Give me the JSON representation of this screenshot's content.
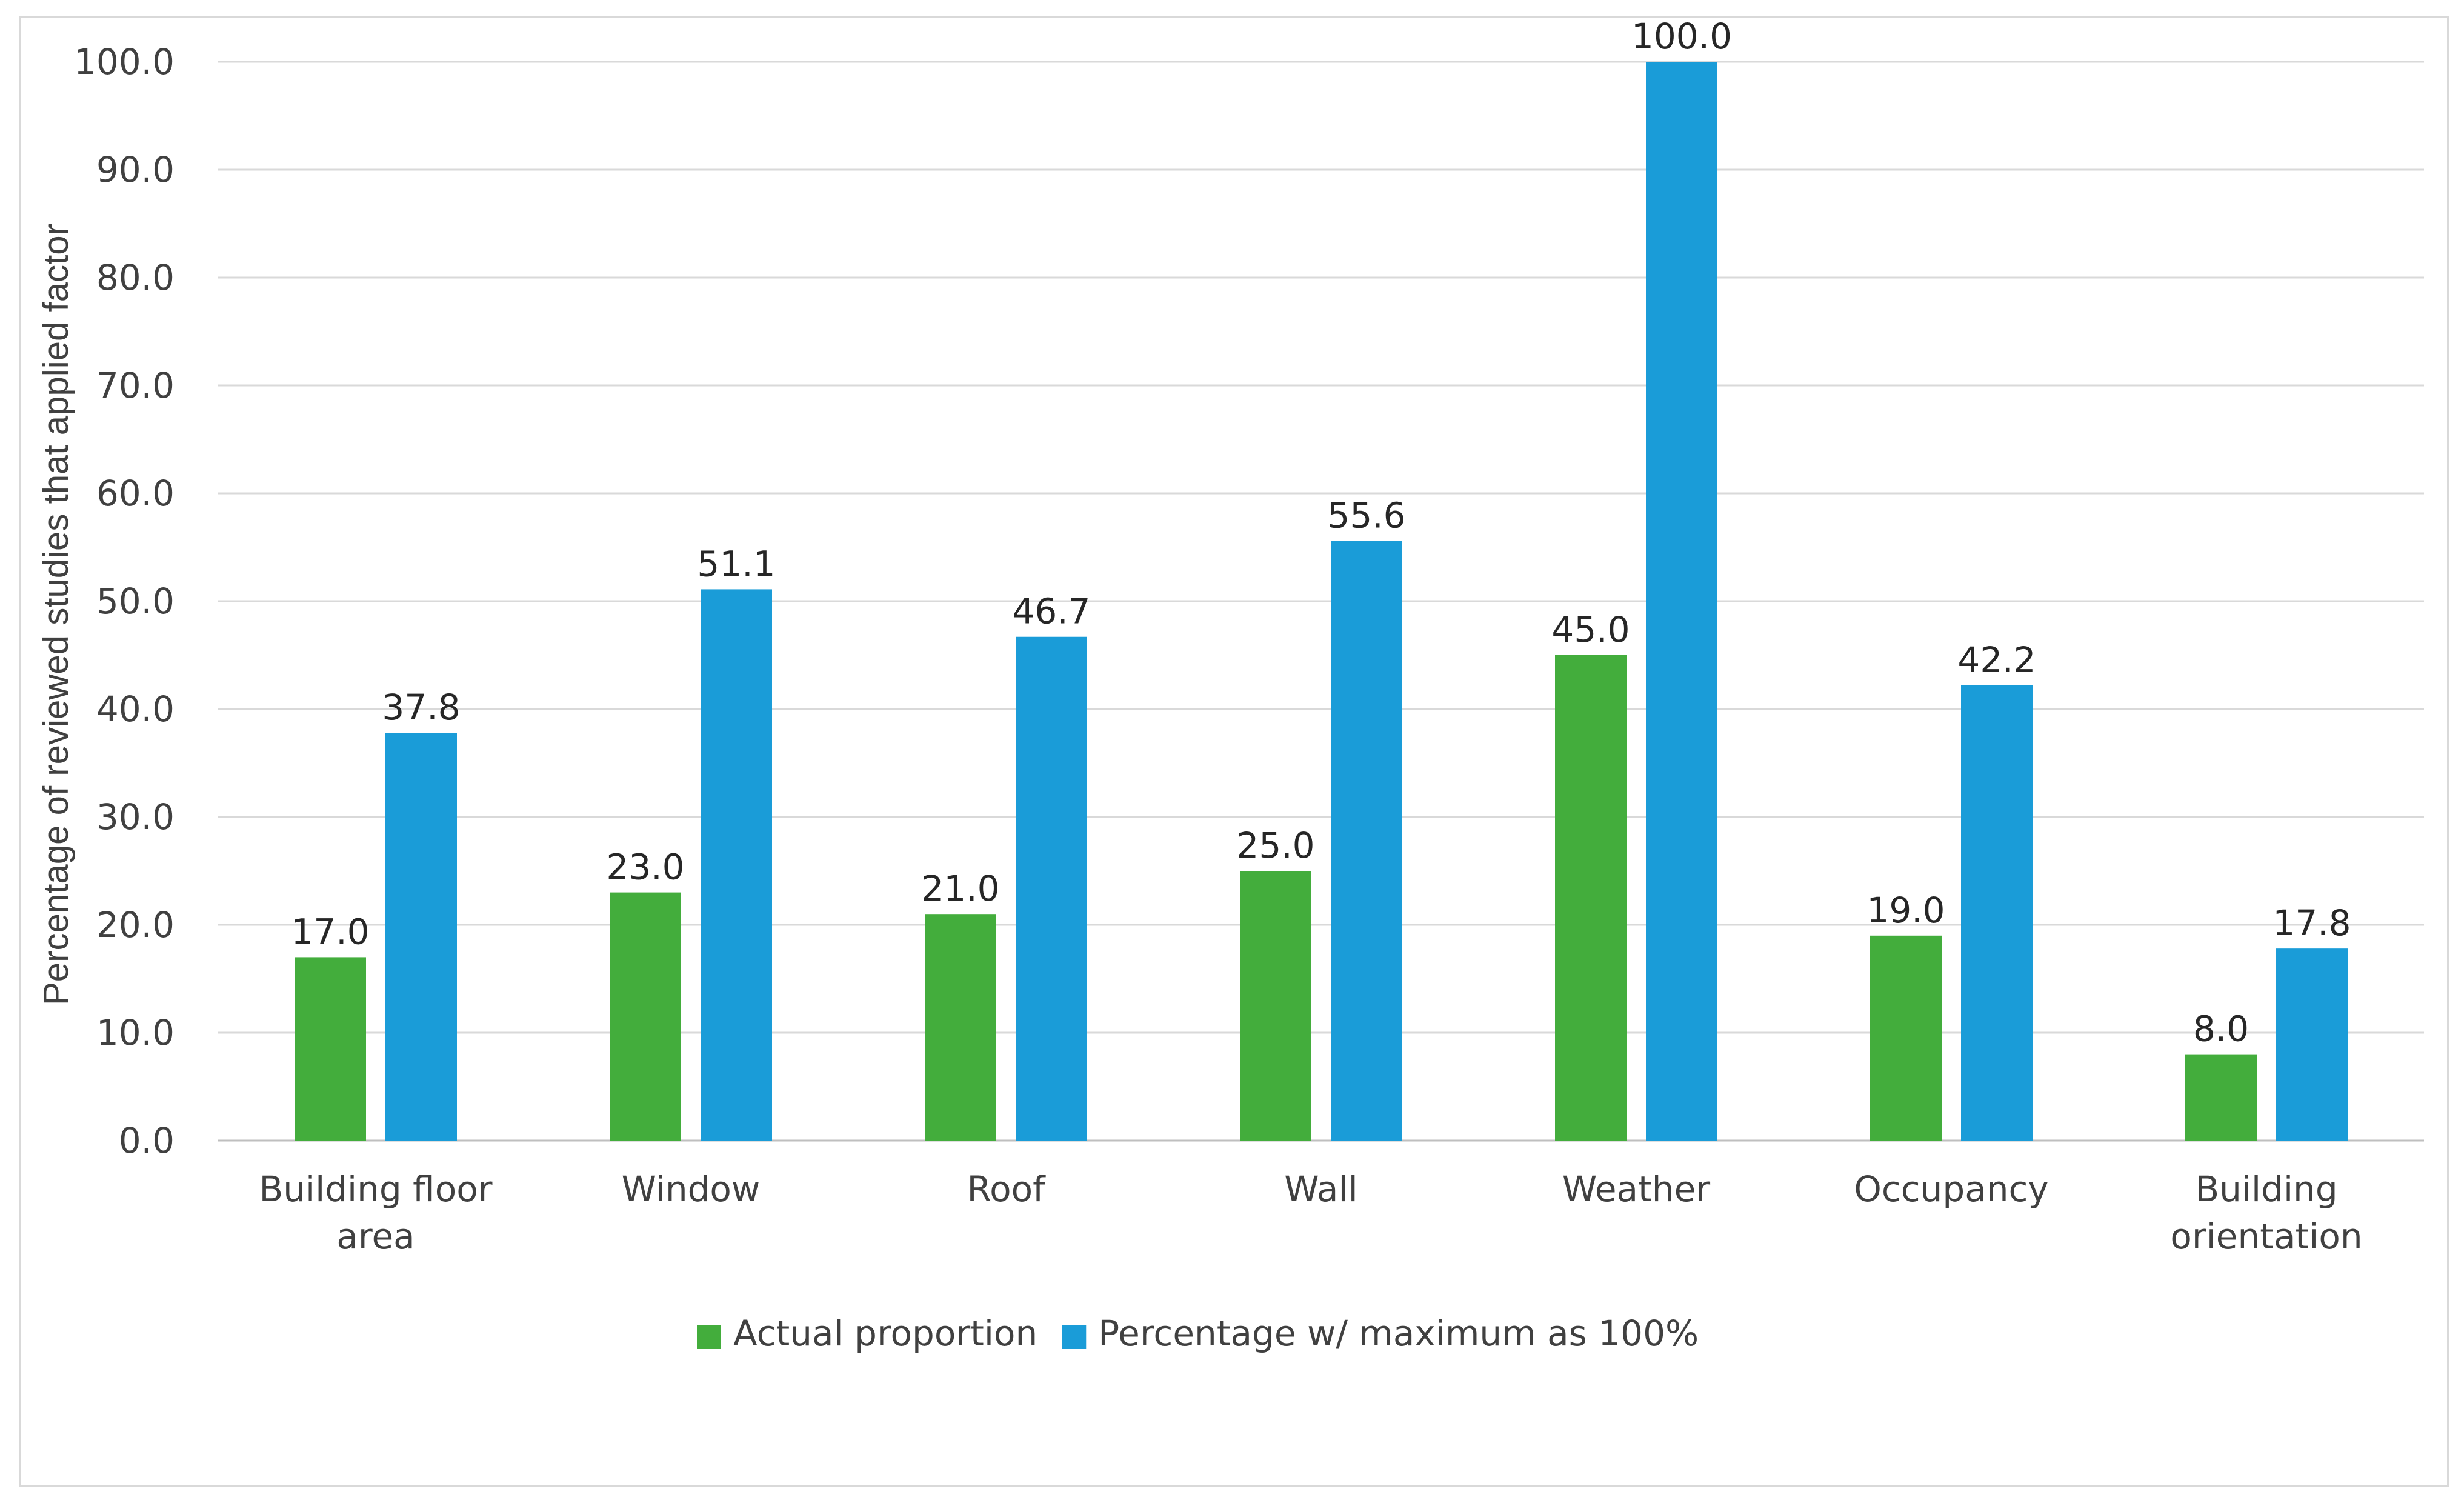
{
  "chart_data": {
    "type": "bar",
    "title": "",
    "xlabel": "",
    "ylabel": "Percentage of reviewed studies that applied factor",
    "ylim": [
      0,
      100
    ],
    "yticks": [
      0,
      10,
      20,
      30,
      40,
      50,
      60,
      70,
      80,
      90,
      100
    ],
    "ytick_labels": [
      "0.0",
      "10.0",
      "20.0",
      "30.0",
      "40.0",
      "50.0",
      "60.0",
      "70.0",
      "80.0",
      "90.0",
      "100.0"
    ],
    "grid": true,
    "legend_position": "bottom",
    "categories": [
      [
        "Building floor",
        "area"
      ],
      [
        "Window"
      ],
      [
        "Roof"
      ],
      [
        "Wall"
      ],
      [
        "Weather"
      ],
      [
        "Occupancy"
      ],
      [
        "Building",
        "orientation"
      ]
    ],
    "series": [
      {
        "name": "Actual proportion",
        "color": "#43ad3c",
        "values": [
          17.0,
          23.0,
          21.0,
          25.0,
          45.0,
          19.0,
          8.0
        ],
        "labels": [
          "17.0",
          "23.0",
          "21.0",
          "25.0",
          "45.0",
          "19.0",
          "8.0"
        ]
      },
      {
        "name": "Percentage w/ maximum as 100%",
        "color": "#1a9cd8",
        "values": [
          37.8,
          51.1,
          46.7,
          55.6,
          100.0,
          42.2,
          17.8
        ],
        "labels": [
          "37.8",
          "51.1",
          "46.7",
          "55.6",
          "100.0",
          "42.2",
          "17.8"
        ]
      }
    ],
    "colors": {
      "gridline": "#d9d9d9",
      "axis": "#bfbfbf"
    }
  }
}
